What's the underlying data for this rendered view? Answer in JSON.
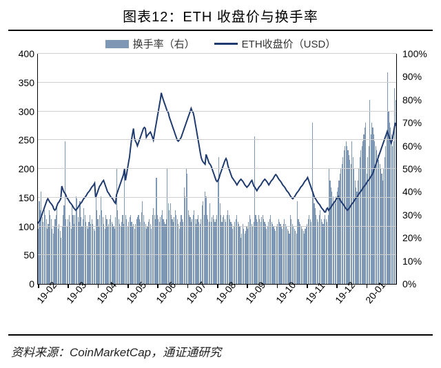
{
  "title": "图表12：ETH 收盘价与换手率",
  "legend": {
    "bars_label": "换手率（右）",
    "line_label": "ETH收盘价（USD）"
  },
  "source": "资料来源：CoinMarketCap，通证通研究",
  "chart": {
    "type": "combo-bar-line",
    "bar_color": "#7d97b4",
    "line_color": "#1f3a6e",
    "line_width": 2,
    "grid_color": "#cfcfcf",
    "axis_color": "#000000",
    "background_color": "#ffffff",
    "left_axis": {
      "min": 0,
      "max": 400,
      "step": 50,
      "labels": [
        "0",
        "50",
        "100",
        "150",
        "200",
        "250",
        "300",
        "350",
        "400"
      ]
    },
    "right_axis": {
      "min": 0,
      "max": 100,
      "step": 10,
      "labels": [
        "0%",
        "10%",
        "20%",
        "30%",
        "40%",
        "50%",
        "60%",
        "70%",
        "80%",
        "90%",
        "100%"
      ]
    },
    "x_labels": [
      "19-02",
      "19-03",
      "19-04",
      "19-05",
      "19-06",
      "19-07",
      "19-08",
      "19-09",
      "19-10",
      "19-11",
      "19-12",
      "20-01"
    ],
    "turnover_pct": [
      24,
      36,
      32,
      40,
      29,
      27,
      32,
      30,
      28,
      24,
      26,
      32,
      30,
      28,
      24,
      22,
      25,
      28,
      30,
      34,
      24,
      26,
      23,
      20,
      25,
      30,
      34,
      62,
      28,
      25,
      28,
      30,
      27,
      24,
      34,
      30,
      26,
      30,
      38,
      37,
      29,
      27,
      36,
      29,
      25,
      28,
      33,
      30,
      27,
      25,
      24,
      27,
      30,
      26,
      28,
      26,
      24,
      23,
      38,
      32,
      28,
      25,
      30,
      38,
      32,
      29,
      26,
      24,
      30,
      28,
      25,
      26,
      28,
      30,
      27,
      26,
      25,
      24,
      29,
      50,
      32,
      28,
      26,
      25,
      27,
      30,
      26,
      50,
      30,
      28,
      25,
      27,
      29,
      30,
      27,
      25,
      26,
      24,
      26,
      28,
      29,
      30,
      28,
      27,
      31,
      36,
      30,
      27,
      26,
      24,
      25,
      27,
      28,
      26,
      24,
      30,
      33,
      30,
      28,
      46,
      30,
      28,
      27,
      29,
      30,
      32,
      28,
      27,
      26,
      28,
      50,
      35,
      32,
      35,
      30,
      28,
      27,
      29,
      32,
      30,
      28,
      26,
      24,
      27,
      30,
      28,
      27,
      42,
      38,
      50,
      48,
      32,
      30,
      29,
      27,
      28,
      30,
      32,
      28,
      26,
      28,
      30,
      27,
      26,
      28,
      34,
      36,
      30,
      40,
      38,
      30,
      28,
      27,
      35,
      27,
      29,
      30,
      28,
      27,
      28,
      30,
      45,
      55,
      35,
      30,
      27,
      29,
      30,
      28,
      27,
      30,
      32,
      30,
      28,
      27,
      26,
      24,
      25,
      27,
      28,
      30,
      27,
      26,
      25,
      20,
      22,
      26,
      24,
      22,
      23,
      25,
      24,
      27,
      30,
      28,
      26,
      25,
      27,
      64,
      30,
      28,
      27,
      30,
      28,
      27,
      29,
      30,
      28,
      27,
      26,
      24,
      25,
      27,
      28,
      30,
      27,
      26,
      25,
      24,
      23,
      25,
      26,
      28,
      27,
      26,
      25,
      24,
      26,
      28,
      26,
      25,
      24,
      23,
      22,
      30,
      28,
      26,
      25,
      24,
      23,
      22,
      36,
      28,
      27,
      26,
      25,
      24,
      23,
      22,
      24,
      25,
      26,
      28,
      30,
      28,
      27,
      70,
      40,
      35,
      33,
      30,
      28,
      27,
      30,
      32,
      28,
      27,
      26,
      28,
      30,
      28,
      27,
      30,
      50,
      45,
      42,
      40,
      38,
      36,
      35,
      38,
      40,
      42,
      45,
      48,
      50,
      52,
      55,
      58,
      60,
      62,
      60,
      58,
      56,
      54,
      52,
      62,
      55,
      50,
      45,
      42,
      40,
      45,
      50,
      55,
      58,
      60,
      62,
      65,
      68,
      70,
      48,
      55,
      60,
      80,
      65,
      70,
      68,
      65,
      62,
      60,
      58,
      56,
      54,
      52,
      50,
      48,
      45,
      50,
      55,
      60,
      65,
      92,
      75,
      70,
      68,
      65,
      60,
      62,
      85,
      80
    ],
    "eth_close_usd": [
      105,
      108,
      110,
      115,
      120,
      125,
      130,
      135,
      140,
      145,
      148,
      145,
      142,
      140,
      138,
      135,
      130,
      128,
      130,
      135,
      140,
      142,
      145,
      148,
      170,
      165,
      160,
      158,
      155,
      150,
      148,
      145,
      142,
      140,
      138,
      135,
      132,
      130,
      128,
      130,
      132,
      135,
      138,
      140,
      142,
      145,
      148,
      150,
      152,
      155,
      158,
      160,
      162,
      165,
      168,
      170,
      172,
      175,
      150,
      155,
      160,
      165,
      170,
      172,
      175,
      178,
      180,
      175,
      170,
      165,
      160,
      158,
      155,
      152,
      150,
      148,
      145,
      142,
      140,
      155,
      160,
      165,
      170,
      175,
      180,
      185,
      190,
      200,
      180,
      190,
      200,
      210,
      220,
      235,
      250,
      260,
      270,
      254,
      248,
      245,
      240,
      245,
      250,
      255,
      260,
      265,
      270,
      272,
      270,
      255,
      258,
      260,
      262,
      264,
      260,
      255,
      250,
      260,
      270,
      280,
      290,
      300,
      310,
      320,
      332,
      325,
      320,
      315,
      310,
      305,
      300,
      298,
      290,
      285,
      280,
      275,
      270,
      265,
      260,
      255,
      250,
      248,
      250,
      252,
      255,
      260,
      265,
      270,
      275,
      280,
      285,
      290,
      295,
      300,
      305,
      300,
      298,
      290,
      280,
      270,
      260,
      250,
      240,
      230,
      220,
      215,
      212,
      210,
      208,
      225,
      220,
      215,
      210,
      208,
      205,
      200,
      195,
      190,
      185,
      180,
      178,
      180,
      184,
      190,
      195,
      200,
      205,
      210,
      215,
      218,
      214,
      205,
      200,
      195,
      190,
      185,
      183,
      180,
      178,
      175,
      172,
      175,
      178,
      180,
      182,
      180,
      178,
      175,
      172,
      170,
      168,
      170,
      172,
      175,
      178,
      180,
      175,
      170,
      168,
      165,
      162,
      165,
      168,
      170,
      172,
      175,
      178,
      180,
      182,
      180,
      178,
      175,
      172,
      175,
      178,
      180,
      182,
      185,
      188,
      190,
      188,
      185,
      182,
      180,
      178,
      175,
      172,
      170,
      168,
      165,
      162,
      160,
      158,
      155,
      152,
      150,
      148,
      150,
      152,
      155,
      158,
      160,
      162,
      165,
      168,
      170,
      172,
      175,
      178,
      180,
      182,
      185,
      180,
      175,
      170,
      165,
      160,
      155,
      150,
      148,
      145,
      142,
      140,
      138,
      135,
      132,
      130,
      128,
      125,
      125,
      130,
      132,
      128,
      130,
      132,
      135,
      138,
      140,
      142,
      145,
      148,
      150,
      152,
      148,
      145,
      142,
      140,
      138,
      135,
      132,
      130,
      128,
      130,
      132,
      135,
      138,
      140,
      142,
      145,
      148,
      150,
      152,
      155,
      158,
      160,
      162,
      165,
      168,
      170,
      172,
      175,
      178,
      180,
      182,
      185,
      188,
      190,
      195,
      200,
      205,
      210,
      215,
      220,
      225,
      230,
      235,
      240,
      245,
      250,
      255,
      260,
      265,
      260,
      255,
      250,
      245,
      250,
      260,
      270,
      280,
      275
    ]
  }
}
